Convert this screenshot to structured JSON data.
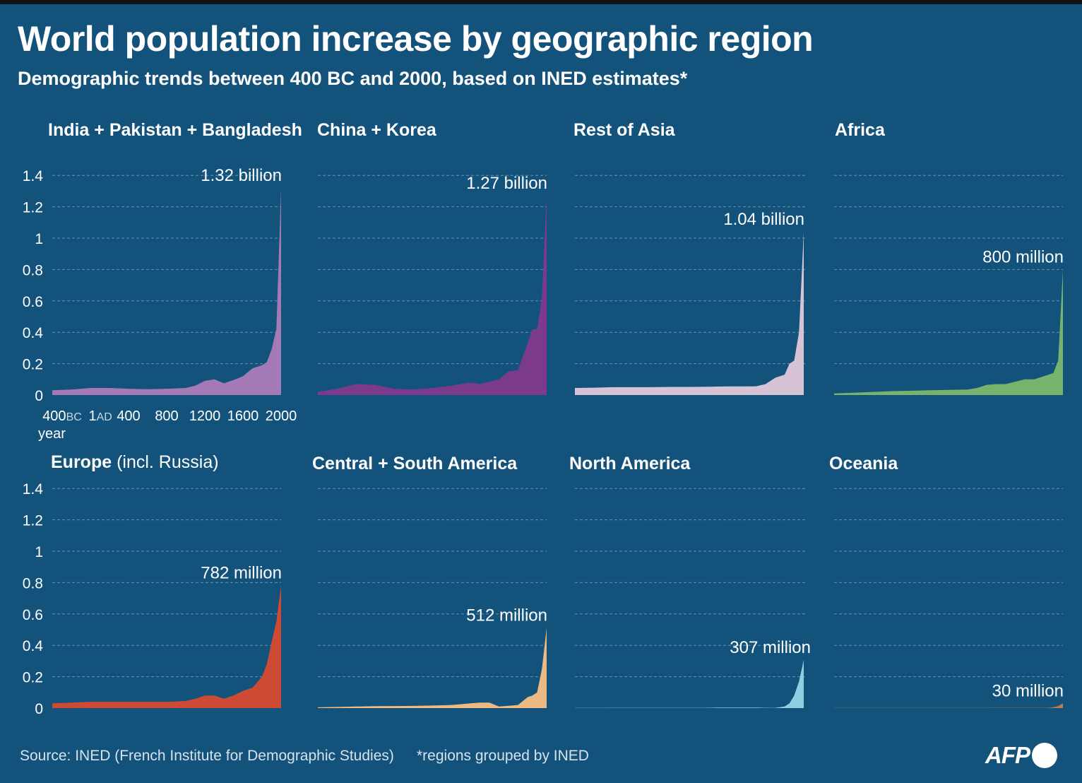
{
  "title": "World population increase by geographic region",
  "subtitle": "Demographic trends between 400 BC and 2000, based on INED estimates*",
  "source": "Source: INED (French Institute for Demographic Studies)",
  "note": "*regions grouped by INED",
  "logo": "AFP",
  "colors": {
    "background": "#13527b",
    "grid": "#7fa3bf"
  },
  "chart_data": {
    "type": "area",
    "small_multiples": true,
    "x": [
      -400,
      -200,
      1,
      200,
      400,
      600,
      800,
      1000,
      1100,
      1200,
      1300,
      1400,
      1500,
      1600,
      1700,
      1800,
      1850,
      1900,
      1950,
      2000
    ],
    "xlim": [
      -400,
      2000
    ],
    "ylim": [
      0,
      1.4
    ],
    "unit": "billion",
    "xlabel": "year",
    "x_ticks": [
      {
        "value": -400,
        "num": "400",
        "era": "BC"
      },
      {
        "value": 1,
        "num": "1",
        "era": "AD"
      },
      {
        "value": 400,
        "num": "400",
        "era": ""
      },
      {
        "value": 800,
        "num": "800",
        "era": ""
      },
      {
        "value": 1200,
        "num": "1200",
        "era": ""
      },
      {
        "value": 1600,
        "num": "1600",
        "era": ""
      },
      {
        "value": 2000,
        "num": "2000",
        "era": ""
      }
    ],
    "y_ticks": [
      {
        "value": 0,
        "label": "0"
      },
      {
        "value": 0.2,
        "label": "0.2"
      },
      {
        "value": 0.4,
        "label": "0.4"
      },
      {
        "value": 0.6,
        "label": "0.6"
      },
      {
        "value": 0.8,
        "label": "0.8"
      },
      {
        "value": 1,
        "label": "1"
      },
      {
        "value": 1.2,
        "label": "1.2"
      },
      {
        "value": 1.4,
        "label": "1.4"
      }
    ],
    "grid": true,
    "series": [
      {
        "name": "India + Pakistan + Bangladesh",
        "name_extra": "",
        "color": "#a47ab6",
        "peak_label": "1.32 billion",
        "values": [
          0.03,
          0.035,
          0.045,
          0.045,
          0.04,
          0.037,
          0.04,
          0.045,
          0.06,
          0.09,
          0.1,
          0.075,
          0.095,
          0.12,
          0.17,
          0.19,
          0.21,
          0.29,
          0.42,
          1.32
        ]
      },
      {
        "name": "China + Korea",
        "name_extra": "",
        "color": "#7c3a8c",
        "peak_label": "1.27 billion",
        "values": [
          0.02,
          0.04,
          0.07,
          0.065,
          0.04,
          0.035,
          0.045,
          0.06,
          0.07,
          0.08,
          0.07,
          0.085,
          0.1,
          0.15,
          0.16,
          0.33,
          0.42,
          0.42,
          0.62,
          1.27
        ]
      },
      {
        "name": "Rest of Asia",
        "name_extra": "",
        "color": "#d6c3d6",
        "peak_label": "1.04 billion",
        "values": [
          0.045,
          0.047,
          0.05,
          0.05,
          0.05,
          0.052,
          0.052,
          0.053,
          0.054,
          0.055,
          0.055,
          0.055,
          0.056,
          0.07,
          0.11,
          0.13,
          0.2,
          0.22,
          0.4,
          1.04
        ]
      },
      {
        "name": "Africa",
        "name_extra": "",
        "color": "#78b36e",
        "peak_label": "800 million",
        "values": [
          0.01,
          0.015,
          0.02,
          0.025,
          0.027,
          0.03,
          0.033,
          0.035,
          0.045,
          0.065,
          0.07,
          0.07,
          0.085,
          0.1,
          0.1,
          0.12,
          0.13,
          0.14,
          0.22,
          0.8
        ]
      },
      {
        "name": "Europe",
        "name_extra": "(incl. Russia)",
        "color": "#cd4b35",
        "peak_label": "782 million",
        "values": [
          0.03,
          0.035,
          0.04,
          0.04,
          0.04,
          0.04,
          0.04,
          0.045,
          0.06,
          0.08,
          0.08,
          0.06,
          0.08,
          0.11,
          0.13,
          0.2,
          0.28,
          0.42,
          0.55,
          0.782
        ]
      },
      {
        "name": "Central + South America",
        "name_extra": "",
        "color": "#ebb981",
        "peak_label": "512 million",
        "values": [
          0.005,
          0.007,
          0.01,
          0.012,
          0.013,
          0.014,
          0.016,
          0.02,
          0.025,
          0.03,
          0.035,
          0.035,
          0.01,
          0.015,
          0.02,
          0.07,
          0.08,
          0.1,
          0.25,
          0.512
        ]
      },
      {
        "name": "North America",
        "name_extra": "",
        "color": "#8ed0e2",
        "peak_label": "307 million",
        "values": [
          0.001,
          0.001,
          0.002,
          0.002,
          0.002,
          0.002,
          0.002,
          0.002,
          0.003,
          0.003,
          0.003,
          0.003,
          0.003,
          0.002,
          0.002,
          0.01,
          0.03,
          0.08,
          0.17,
          0.307
        ]
      },
      {
        "name": "Oceania",
        "name_extra": "",
        "color": "#b97b52",
        "peak_label": "30 million",
        "values": [
          0.001,
          0.001,
          0.001,
          0.001,
          0.001,
          0.001,
          0.001,
          0.001,
          0.001,
          0.001,
          0.002,
          0.002,
          0.002,
          0.002,
          0.002,
          0.002,
          0.002,
          0.006,
          0.013,
          0.03
        ]
      }
    ]
  }
}
